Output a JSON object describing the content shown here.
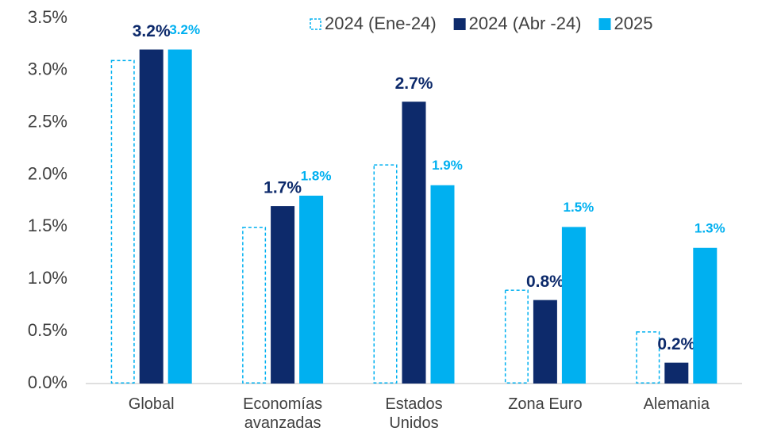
{
  "chart_data": {
    "type": "bar",
    "categories": [
      "Global",
      "Economías avanzadas",
      "Estados Unidos",
      "Zona Euro",
      "Alemania"
    ],
    "series": [
      {
        "name": "2024 (Ene-24)",
        "color": "#00b0f0",
        "style": "dashed-outline",
        "values": [
          3.1,
          1.5,
          2.1,
          0.9,
          0.5
        ]
      },
      {
        "name": "2024 (Abr -24)",
        "color": "#0d2a6b",
        "values": [
          3.2,
          1.7,
          2.7,
          0.8,
          0.2
        ],
        "value_labels": [
          "3.2%",
          "1.7%",
          "2.7%",
          "0.8%",
          "0.2%"
        ]
      },
      {
        "name": "2025",
        "color": "#00b0f0",
        "values": [
          3.2,
          1.8,
          1.9,
          1.5,
          1.3
        ],
        "value_labels": [
          "3.2%",
          "1.8%",
          "1.9%",
          "1.5%",
          "1.3%"
        ]
      }
    ],
    "ylim": [
      0,
      3.5
    ],
    "yticks": [
      {
        "value": 0,
        "label": "0.0%"
      },
      {
        "value": 0.5,
        "label": "0.5%"
      },
      {
        "value": 1,
        "label": "1.0%"
      },
      {
        "value": 1.5,
        "label": "1.5%"
      },
      {
        "value": 2,
        "label": "2.0%"
      },
      {
        "value": 2.5,
        "label": "2.5%"
      },
      {
        "value": 3,
        "label": "3.0%"
      },
      {
        "value": 3.5,
        "label": "3.5%"
      }
    ],
    "grid": false,
    "legend": "top-right"
  }
}
